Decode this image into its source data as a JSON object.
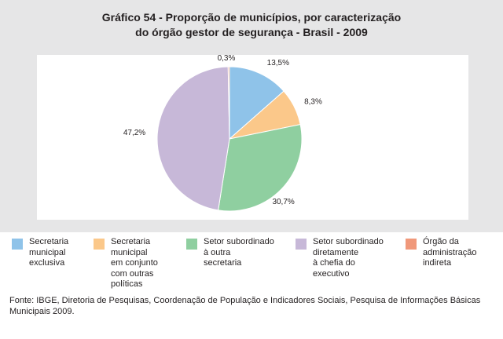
{
  "title": {
    "line1": "Gráfico 54 - Proporção de municípios, por caracterização",
    "line2": "do órgão gestor de segurança - Brasil - 2009"
  },
  "chart_data": {
    "type": "pie",
    "slices": [
      {
        "label": "Secretaria municipal exclusiva",
        "value": 13.5,
        "display": "13,5%",
        "color": "#8fc3e9"
      },
      {
        "label": "Secretaria municipal em conjunto com outras políticas",
        "value": 8.3,
        "display": "8,3%",
        "color": "#fbc88a"
      },
      {
        "label": "Setor subordinado à outra secretaria",
        "value": 30.7,
        "display": "30,7%",
        "color": "#8fcfa0"
      },
      {
        "label": "Setor subordinado diretamente à chefia do executivo",
        "value": 47.2,
        "display": "47,2%",
        "color": "#c7b8d8"
      },
      {
        "label": "Órgão da administração indireta",
        "value": 0.3,
        "display": "0,3%",
        "color": "#f0987a"
      }
    ]
  },
  "legend": [
    {
      "text": "Secretaria\nmunicipal\nexclusiva",
      "color": "#8fc3e9"
    },
    {
      "text": "Secretaria\nmunicipal\nem conjunto\ncom outras\npolíticas",
      "color": "#fbc88a"
    },
    {
      "text": "Setor subordinado\nà outra\nsecretaria",
      "color": "#8fcfa0"
    },
    {
      "text": "Setor subordinado\ndiretamente\nà chefia do\nexecutivo",
      "color": "#c7b8d8"
    },
    {
      "text": "Órgão da\nadministração\nindireta",
      "color": "#f0987a"
    }
  ],
  "source": "Fonte: IBGE, Diretoria de Pesquisas, Coordenação de População e Indicadores Sociais, Pesquisa de Informações Básicas Municipais 2009."
}
